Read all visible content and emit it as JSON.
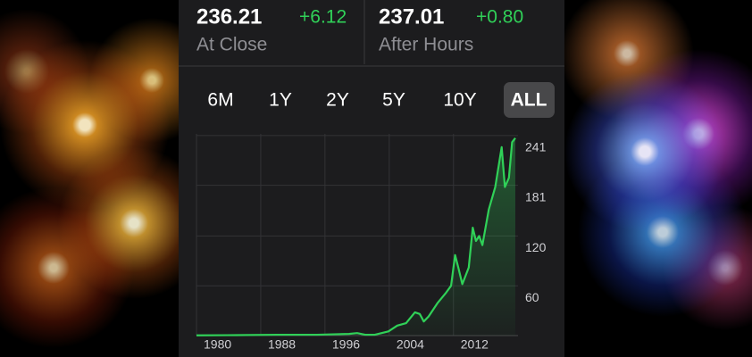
{
  "quote": {
    "close_price": "236.21",
    "close_change": "+6.12",
    "close_label": "At Close",
    "after_price": "237.01",
    "after_change": "+0.80",
    "after_label": "After Hours"
  },
  "ranges": [
    "6M",
    "1Y",
    "2Y",
    "5Y",
    "10Y",
    "ALL"
  ],
  "selected_range": "ALL",
  "chart_data": {
    "type": "line",
    "x": [
      1980,
      1985,
      1990,
      1995,
      1999,
      2000,
      2001,
      2002.2,
      2003.9,
      2005.0,
      2006.1,
      2007.2,
      2007.8,
      2008.3,
      2008.9,
      2010.0,
      2011.1,
      2011.7,
      2012.2,
      2012.6,
      2013.1,
      2013.9,
      2014.4,
      2014.8,
      2015.2,
      2015.6,
      2016.4,
      2017.2,
      2018.0,
      2018.4,
      2018.9,
      2019.3,
      2019.7
    ],
    "values": [
      0.3,
      0.5,
      1,
      1,
      2,
      3,
      1,
      1,
      5,
      12,
      15,
      28,
      26,
      17,
      23,
      39,
      52,
      60,
      97,
      82,
      62,
      82,
      130,
      114,
      120,
      109,
      152,
      179,
      227,
      179,
      190,
      233,
      238
    ],
    "color": "#30d158",
    "xlim": [
      1980,
      2019.7
    ],
    "xticks": [
      1980,
      1988,
      1996,
      2004,
      2012
    ],
    "ylim": [
      0,
      243
    ],
    "yticks": [
      60,
      120,
      181,
      241
    ],
    "grid": true
  }
}
